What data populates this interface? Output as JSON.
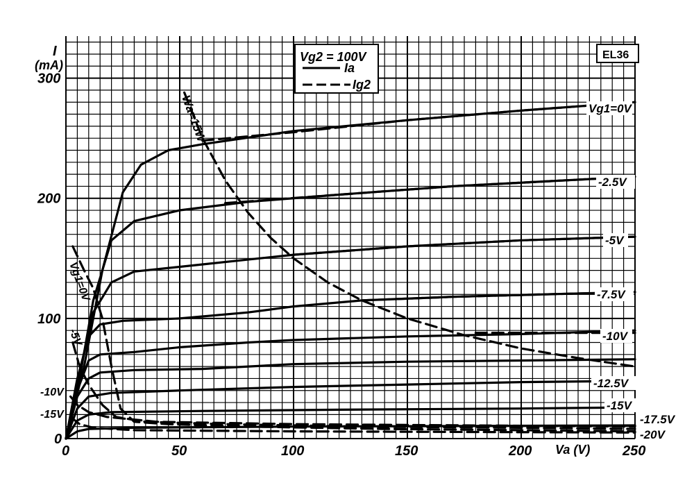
{
  "chart_data": {
    "type": "line",
    "title": "",
    "tube_label": "EL36",
    "ylabel_top": "I",
    "ylabel_unit": "(mA)",
    "xlabel": "Va (V)",
    "legend_title": "Vg2 = 100V",
    "legend": [
      {
        "name": "Ia",
        "style": "solid"
      },
      {
        "name": "Ig2",
        "style": "dashed"
      }
    ],
    "xlim": [
      0,
      250
    ],
    "ylim": [
      0,
      335
    ],
    "x_ticks": [
      "0",
      "50",
      "100",
      "150",
      "200",
      "250"
    ],
    "y_ticks": [
      "0",
      "100",
      "200",
      "300"
    ],
    "grid": true,
    "series": [
      {
        "curve_label": "Vg1=0V",
        "kind": "Ia",
        "points": [
          [
            0,
            0
          ],
          [
            8,
            60
          ],
          [
            16,
            140
          ],
          [
            25,
            205
          ],
          [
            33,
            228
          ],
          [
            45,
            240
          ],
          [
            60,
            245
          ],
          [
            100,
            256
          ],
          [
            150,
            265
          ],
          [
            200,
            273
          ],
          [
            250,
            280
          ]
        ]
      },
      {
        "curve_label": "-2.5V",
        "kind": "Ia",
        "points": [
          [
            0,
            0
          ],
          [
            6,
            50
          ],
          [
            12,
            115
          ],
          [
            20,
            165
          ],
          [
            30,
            181
          ],
          [
            50,
            190
          ],
          [
            80,
            197
          ],
          [
            120,
            203
          ],
          [
            170,
            210
          ],
          [
            210,
            214
          ],
          [
            250,
            218
          ]
        ]
      },
      {
        "curve_label": "-5V",
        "kind": "Ia",
        "points": [
          [
            0,
            0
          ],
          [
            6,
            55
          ],
          [
            12,
            105
          ],
          [
            20,
            130
          ],
          [
            30,
            139
          ],
          [
            60,
            145
          ],
          [
            100,
            153
          ],
          [
            150,
            160
          ],
          [
            200,
            165
          ],
          [
            250,
            168
          ]
        ]
      },
      {
        "curve_label": "-7.5V",
        "kind": "Ia",
        "points": [
          [
            0,
            0
          ],
          [
            5,
            50
          ],
          [
            10,
            85
          ],
          [
            15,
            95
          ],
          [
            25,
            98
          ],
          [
            50,
            100
          ],
          [
            80,
            105
          ],
          [
            100,
            110
          ],
          [
            130,
            115
          ],
          [
            170,
            118
          ],
          [
            210,
            120
          ],
          [
            250,
            122
          ]
        ]
      },
      {
        "curve_label": "-10V",
        "kind": "Ia",
        "points": [
          [
            0,
            0
          ],
          [
            5,
            40
          ],
          [
            10,
            65
          ],
          [
            15,
            70
          ],
          [
            30,
            72
          ],
          [
            50,
            76
          ],
          [
            80,
            80
          ],
          [
            100,
            82
          ],
          [
            150,
            85
          ],
          [
            200,
            87
          ],
          [
            250,
            90
          ]
        ]
      },
      {
        "curve_label": "-12.5V",
        "kind": "Ia",
        "points": [
          [
            0,
            0
          ],
          [
            5,
            35
          ],
          [
            10,
            50
          ],
          [
            15,
            55
          ],
          [
            30,
            57
          ],
          [
            60,
            58
          ],
          [
            100,
            62
          ],
          [
            150,
            64
          ],
          [
            200,
            65
          ],
          [
            250,
            66
          ]
        ]
      },
      {
        "curve_label": "-15V",
        "kind": "Ia",
        "points": [
          [
            0,
            0
          ],
          [
            5,
            25
          ],
          [
            10,
            35
          ],
          [
            20,
            38
          ],
          [
            50,
            40
          ],
          [
            100,
            43
          ],
          [
            150,
            45
          ],
          [
            200,
            47
          ],
          [
            250,
            48
          ]
        ]
      },
      {
        "curve_label": "-17.5V",
        "kind": "Ia",
        "points": [
          [
            0,
            0
          ],
          [
            5,
            15
          ],
          [
            10,
            20
          ],
          [
            20,
            22
          ],
          [
            60,
            23
          ],
          [
            120,
            24
          ],
          [
            200,
            25
          ],
          [
            250,
            26
          ]
        ]
      },
      {
        "curve_label": "-20V",
        "kind": "Ia",
        "points": [
          [
            0,
            0
          ],
          [
            5,
            6
          ],
          [
            10,
            8
          ],
          [
            30,
            9
          ],
          [
            100,
            10
          ],
          [
            250,
            11
          ]
        ]
      },
      {
        "curve_label": "Vg1=0V",
        "kind": "Ig2",
        "points": [
          [
            60,
            248
          ],
          [
            100,
            255
          ],
          [
            150,
            265
          ],
          [
            200,
            273
          ],
          [
            250,
            280
          ]
        ]
      },
      {
        "curve_label": "-2.5V",
        "kind": "Ig2",
        "points": [
          [
            70,
            196
          ],
          [
            120,
            203
          ],
          [
            170,
            210
          ],
          [
            250,
            218
          ]
        ]
      },
      {
        "curve_label": "-5V",
        "kind": "Ig2",
        "points": [
          [
            100,
            153
          ],
          [
            150,
            160
          ],
          [
            200,
            165
          ],
          [
            250,
            168
          ]
        ]
      },
      {
        "curve_label": "-7.5V",
        "kind": "Ig2",
        "points": [
          [
            130,
            115
          ],
          [
            170,
            118
          ],
          [
            210,
            120
          ],
          [
            250,
            122
          ]
        ]
      },
      {
        "curve_label": "-10V",
        "kind": "Ig2",
        "points": [
          [
            180,
            88
          ],
          [
            210,
            88
          ],
          [
            250,
            88
          ]
        ]
      },
      {
        "curve_label": "Vg1=0V",
        "kind": "Ig2",
        "points": [
          [
            3,
            160
          ],
          [
            8,
            140
          ],
          [
            12,
            125
          ],
          [
            16,
            100
          ],
          [
            20,
            60
          ],
          [
            24,
            25
          ],
          [
            30,
            14
          ],
          [
            45,
            12
          ],
          [
            80,
            10
          ],
          [
            140,
            8
          ],
          [
            200,
            7
          ],
          [
            250,
            6
          ]
        ]
      },
      {
        "curve_label": "-5V",
        "kind": "Ig2",
        "points": [
          [
            3,
            80
          ],
          [
            6,
            60
          ],
          [
            10,
            45
          ],
          [
            16,
            28
          ],
          [
            22,
            18
          ],
          [
            35,
            14
          ],
          [
            70,
            12
          ],
          [
            130,
            10
          ],
          [
            200,
            9
          ],
          [
            250,
            8
          ]
        ]
      },
      {
        "curve_label": "-10V",
        "kind": "Ig2",
        "points": [
          [
            2,
            35
          ],
          [
            5,
            28
          ],
          [
            10,
            22
          ],
          [
            18,
            18
          ],
          [
            40,
            14
          ],
          [
            100,
            12
          ],
          [
            250,
            10
          ]
        ]
      },
      {
        "curve_label": "-15V",
        "kind": "Ig2",
        "points": [
          [
            2,
            18
          ],
          [
            6,
            12
          ],
          [
            12,
            9
          ],
          [
            30,
            7
          ],
          [
            100,
            6
          ],
          [
            250,
            5
          ]
        ]
      },
      {
        "curve_label": "Wa=15W",
        "kind": "Ia",
        "points": [
          [
            52,
            288
          ],
          [
            60,
            250
          ],
          [
            70,
            215
          ],
          [
            80,
            188
          ],
          [
            90,
            167
          ],
          [
            100,
            150
          ],
          [
            115,
            130
          ],
          [
            130,
            115
          ],
          [
            150,
            100
          ],
          [
            175,
            86
          ],
          [
            200,
            75
          ],
          [
            225,
            67
          ],
          [
            250,
            60
          ]
        ]
      }
    ],
    "curve_labels_right": [
      "Vg1=0V",
      "-2.5V",
      "-5V",
      "-7.5V",
      "-10V",
      "-12.5V",
      "-15V",
      "-17.5V",
      "-20V"
    ],
    "curve_labels_left": [
      "Vg1=0V",
      "-5V",
      "-10V",
      "-15V"
    ],
    "power_label": "Wa=15W"
  }
}
